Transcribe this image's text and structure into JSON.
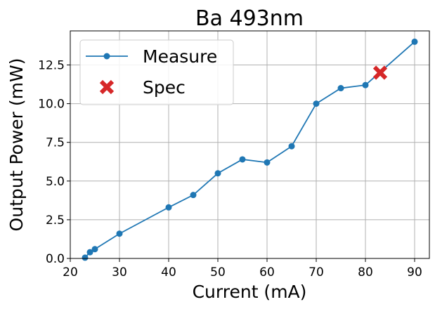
{
  "chart_data": {
    "type": "line",
    "title": "Ba 493nm",
    "xlabel": "Current (mA)",
    "ylabel": "Output Power (mW)",
    "xlim": [
      20,
      93
    ],
    "ylim": [
      0,
      14.7
    ],
    "xticks": [
      20,
      30,
      40,
      50,
      60,
      70,
      80,
      90
    ],
    "yticks": [
      0.0,
      2.5,
      5.0,
      7.5,
      10.0,
      12.5
    ],
    "xtick_labels": [
      "20",
      "30",
      "40",
      "50",
      "60",
      "70",
      "80",
      "90"
    ],
    "ytick_labels": [
      "0.0",
      "2.5",
      "5.0",
      "7.5",
      "10.0",
      "12.5"
    ],
    "grid": true,
    "legend_position": "upper-left",
    "series": [
      {
        "name": "Measure",
        "type": "line",
        "marker": "circle",
        "color": "#1f77b4",
        "x": [
          23,
          24,
          25,
          30,
          40,
          45,
          50,
          55,
          60,
          65,
          70,
          75,
          80,
          90
        ],
        "y": [
          0.05,
          0.4,
          0.6,
          1.6,
          3.3,
          4.1,
          5.5,
          6.4,
          6.2,
          7.25,
          10.0,
          11.0,
          11.2,
          14.0
        ]
      },
      {
        "name": "Spec",
        "type": "scatter",
        "marker": "thick-x",
        "color": "#d62728",
        "x": [
          83
        ],
        "y": [
          12.0
        ]
      }
    ]
  }
}
